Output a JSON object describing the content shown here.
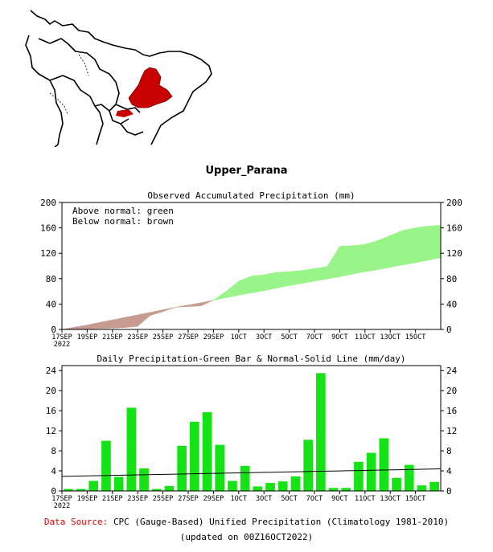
{
  "page": {
    "title": "Upper_Parana",
    "source_label": "Data Source:",
    "source_text": "CPC (Gauge-Based) Unified Precipitation (Climatology 1981-2010)",
    "updated": "(updated on 00Z16OCT2022)"
  },
  "colors": {
    "above": "#99f489",
    "below": "#c79b8f",
    "bar": "#16e316",
    "region": "#c80000"
  },
  "chart_data": [
    {
      "type": "area",
      "title": "Observed Accumulated Precipitation (mm)",
      "legend": [
        "Above normal: green",
        "Below normal: brown"
      ],
      "ylim": [
        0,
        200
      ],
      "yticks": [
        "0",
        "40",
        "80",
        "120",
        "160",
        "200"
      ],
      "ytick_values": [
        0,
        40,
        80,
        120,
        160,
        200
      ],
      "xticks": [
        "17SEP",
        "19SEP",
        "21SEP",
        "23SEP",
        "25SEP",
        "27SEP",
        "29SEP",
        "1OCT",
        "3OCT",
        "5OCT",
        "7OCT",
        "9OCT",
        "11OCT",
        "13OCT",
        "15OCT"
      ],
      "xtick_sub": "2022",
      "days": 30,
      "observed": [
        0,
        0.5,
        1,
        1.5,
        2,
        3,
        5,
        22,
        28,
        35,
        36,
        37,
        46,
        60,
        76,
        84,
        86,
        90,
        91,
        93,
        96,
        99,
        131,
        132,
        134,
        140,
        148,
        156,
        160,
        163,
        164
      ],
      "normal": [
        0,
        3.5,
        7,
        11,
        15,
        19,
        23,
        27,
        31,
        35,
        38.5,
        42,
        46,
        50,
        54,
        57.5,
        61,
        65,
        69,
        72.5,
        76,
        79.5,
        83,
        87,
        91,
        94,
        98,
        101.5,
        105,
        109,
        113
      ]
    },
    {
      "type": "bar",
      "title": "Daily Precipitation-Green Bar & Normal-Solid Line (mm/day)",
      "ylim": [
        0,
        25
      ],
      "yticks": [
        "0",
        "4",
        "8",
        "12",
        "16",
        "20",
        "24"
      ],
      "ytick_values": [
        0,
        4,
        8,
        12,
        16,
        20,
        24
      ],
      "xticks": [
        "17SEP",
        "19SEP",
        "21SEP",
        "23SEP",
        "25SEP",
        "27SEP",
        "29SEP",
        "1OCT",
        "3OCT",
        "5OCT",
        "7OCT",
        "9OCT",
        "11OCT",
        "13OCT",
        "15OCT"
      ],
      "xtick_sub": "2022",
      "values": [
        0.4,
        0.4,
        2.0,
        10.0,
        2.8,
        16.6,
        4.5,
        0.4,
        1.0,
        9.0,
        13.8,
        15.7,
        9.2,
        2.0,
        5.0,
        0.9,
        1.6,
        1.9,
        2.9,
        10.2,
        23.5,
        0.6,
        0.6,
        5.8,
        7.6,
        10.5,
        2.6,
        5.2,
        1.1,
        1.8
      ],
      "normal_line": [
        2.9,
        4.4
      ]
    }
  ]
}
